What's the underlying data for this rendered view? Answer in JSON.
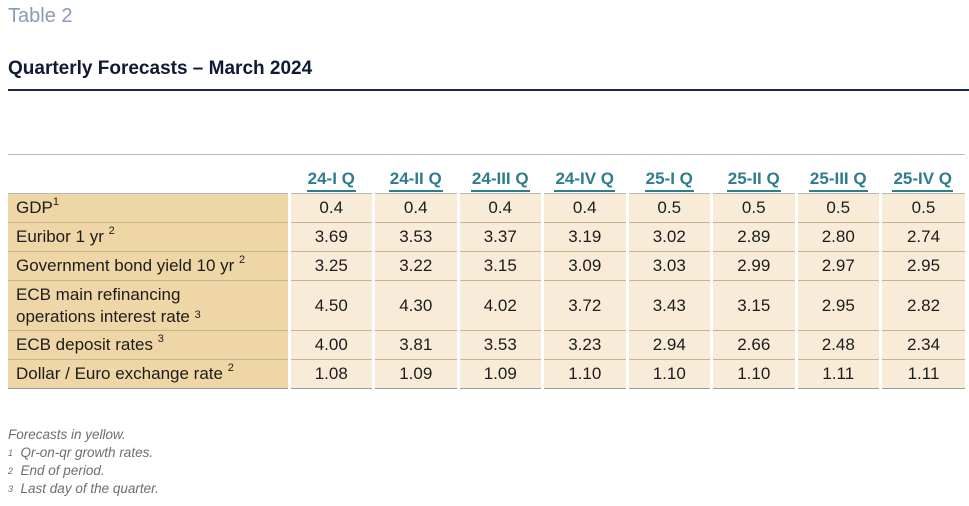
{
  "label": "Table 2",
  "title": "Quarterly Forecasts – March 2024",
  "columns": [
    "24-I Q",
    "24-II Q",
    "24-III Q",
    "24-IV Q",
    "25-I Q",
    "25-II Q",
    "25-III Q",
    "25-IV Q"
  ],
  "rows": [
    {
      "label": "GDP",
      "label2": "",
      "note": "1",
      "values": [
        "0.4",
        "0.4",
        "0.4",
        "0.4",
        "0.5",
        "0.5",
        "0.5",
        "0.5"
      ]
    },
    {
      "label": "Euribor 1 yr",
      "label2": "",
      "note": "2",
      "values": [
        "3.69",
        "3.53",
        "3.37",
        "3.19",
        "3.02",
        "2.89",
        "2.80",
        "2.74"
      ]
    },
    {
      "label": "Government bond yield 10 yr",
      "label2": "",
      "note": "2",
      "values": [
        "3.25",
        "3.22",
        "3.15",
        "3.09",
        "3.03",
        "2.99",
        "2.97",
        "2.95"
      ]
    },
    {
      "label": "ECB main refinancing",
      "label2": "operations interest rate",
      "note": "3",
      "values": [
        "4.50",
        "4.30",
        "4.02",
        "3.72",
        "3.43",
        "3.15",
        "2.95",
        "2.82"
      ]
    },
    {
      "label": "ECB deposit rates",
      "label2": "",
      "note": "3",
      "values": [
        "4.00",
        "3.81",
        "3.53",
        "3.23",
        "2.94",
        "2.66",
        "2.48",
        "2.34"
      ]
    },
    {
      "label": "Dollar / Euro exchange rate",
      "label2": "",
      "note": "2",
      "values": [
        "1.08",
        "1.09",
        "1.09",
        "1.10",
        "1.10",
        "1.10",
        "1.11",
        "1.11"
      ]
    }
  ],
  "notes": {
    "forecasts": "Forecasts in yellow.",
    "items": [
      {
        "mark": "1",
        "text": "Qr-on-qr growth rates."
      },
      {
        "mark": "2",
        "text": "End of period."
      },
      {
        "mark": "3",
        "text": "Last day of the quarter."
      }
    ]
  }
}
